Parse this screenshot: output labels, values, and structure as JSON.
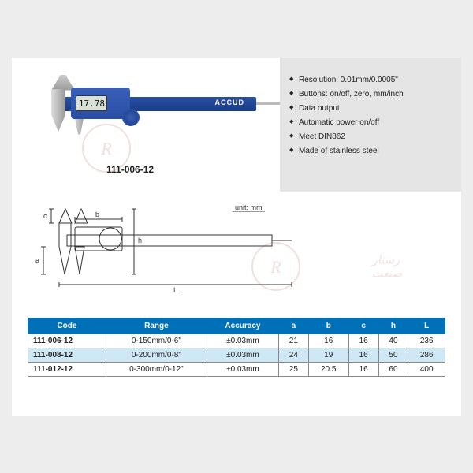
{
  "product": {
    "brand": "ACCUD",
    "display_reading": "17.78",
    "code_label": "111-006-12"
  },
  "bullets": [
    "Resolution: 0.01mm/0.0005\"",
    "Buttons: on/off, zero, mm/inch",
    "Data output",
    "Automatic power on/off",
    "Meet DIN862",
    "Made of stainless steel"
  ],
  "diagram": {
    "unit_label": "unit: mm",
    "dims": [
      "a",
      "b",
      "c",
      "h",
      "L"
    ]
  },
  "table": {
    "columns": [
      "Code",
      "Range",
      "Accuracy",
      "a",
      "b",
      "c",
      "h",
      "L"
    ],
    "rows": [
      {
        "code": "111-006-12",
        "range": "0-150mm/0-6\"",
        "accuracy": "±0.03mm",
        "a": "21",
        "b": "16",
        "c": "16",
        "h": "40",
        "L": "236",
        "highlight": false
      },
      {
        "code": "111-008-12",
        "range": "0-200mm/0-8\"",
        "accuracy": "±0.03mm",
        "a": "24",
        "b": "19",
        "c": "16",
        "h": "50",
        "L": "286",
        "highlight": true
      },
      {
        "code": "111-012-12",
        "range": "0-300mm/0-12\"",
        "accuracy": "±0.03mm",
        "a": "25",
        "b": "20.5",
        "c": "16",
        "h": "60",
        "L": "400",
        "highlight": false
      }
    ]
  },
  "colors": {
    "header_bg": "#0070b8",
    "highlight_bg": "#cfe8f5",
    "page_bg": "#ffffff",
    "outer_bg": "#ededed",
    "bullet_panel_bg": "#e5e5e5",
    "caliper_blue": "#2a4ea5"
  }
}
